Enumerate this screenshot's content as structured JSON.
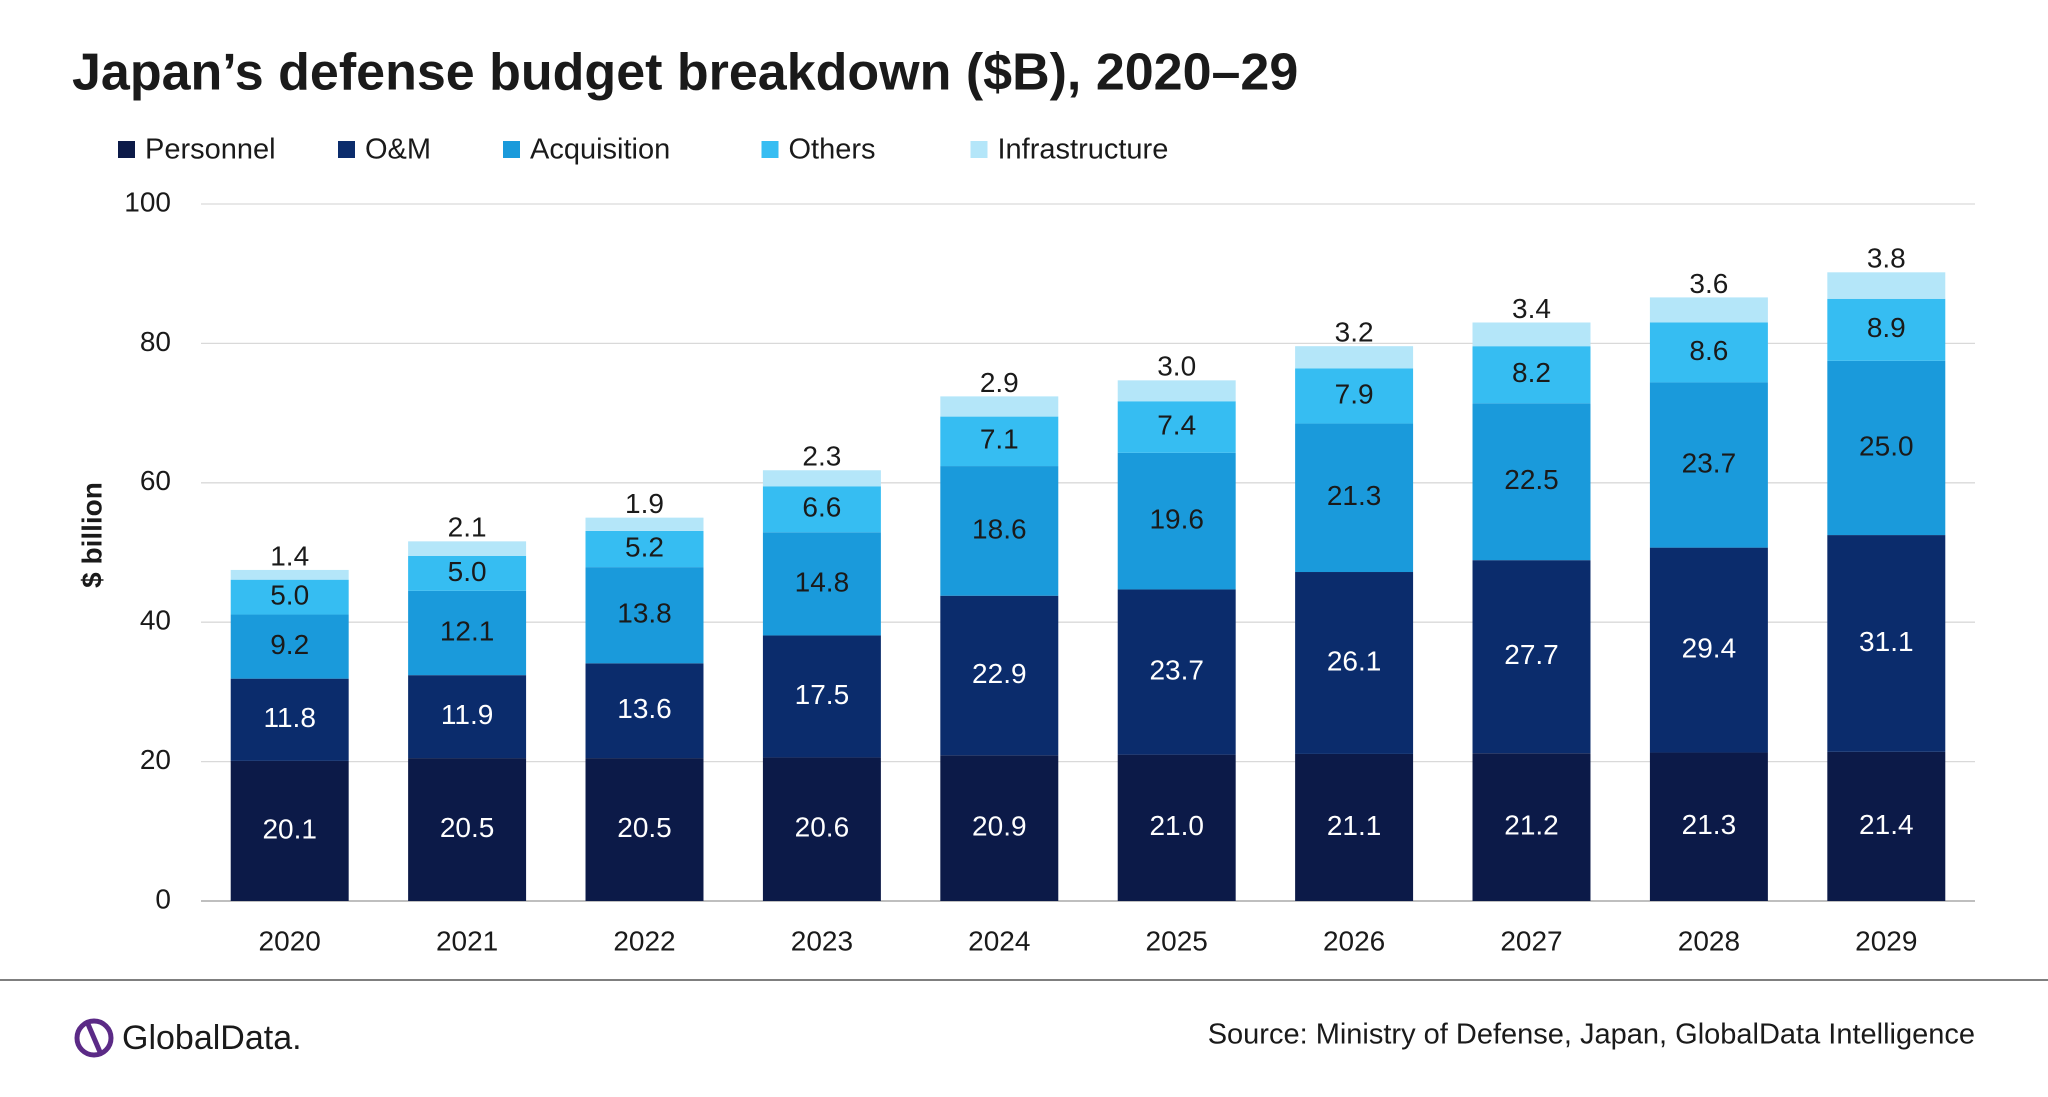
{
  "chart_data": {
    "type": "stacked-bar",
    "title": "Japan’s defense budget breakdown ($B), 2020–29",
    "y_label": "$ billion",
    "source": "Source: Ministry of Defense, Japan, GlobalData Intelligence",
    "logo": "GlobalData.",
    "categories": [
      "2020",
      "2021",
      "2022",
      "2023",
      "2024",
      "2025",
      "2026",
      "2027",
      "2028",
      "2029"
    ],
    "series": [
      {
        "name": "Personnel",
        "color": "#0c1a48",
        "label_color": "#ffffff",
        "values": [
          20.1,
          20.5,
          20.5,
          20.6,
          20.9,
          21.0,
          21.1,
          21.2,
          21.3,
          21.4
        ],
        "value_labels": [
          "20.1",
          "20.5",
          "20.5",
          "20.6",
          "20.9",
          "21.0",
          "21.1",
          "21.2",
          "21.3",
          "21.4"
        ]
      },
      {
        "name": "O&M",
        "color": "#0b2c6c",
        "label_color": "#ffffff",
        "values": [
          11.8,
          11.9,
          13.6,
          17.5,
          22.9,
          23.7,
          26.1,
          27.7,
          29.4,
          31.1
        ],
        "value_labels": [
          "11.8",
          "11.9",
          "13.6",
          "17.5",
          "22.9",
          "23.7",
          "26.1",
          "27.7",
          "29.4",
          "31.1"
        ]
      },
      {
        "name": "Acquisition",
        "color": "#1a9adb",
        "label_color": "#1a1a1a",
        "values": [
          9.2,
          12.1,
          13.8,
          14.8,
          18.6,
          19.6,
          21.3,
          22.5,
          23.7,
          25.0
        ],
        "value_labels": [
          "9.2",
          "12.1",
          "13.8",
          "14.8",
          "18.6",
          "19.6",
          "21.3",
          "22.5",
          "23.7",
          "25.0"
        ]
      },
      {
        "name": "Others",
        "color": "#36bdf2",
        "label_color": "#1a1a1a",
        "values": [
          5.0,
          5.0,
          5.2,
          6.6,
          7.1,
          7.4,
          7.9,
          8.2,
          8.6,
          8.9
        ],
        "value_labels": [
          "5.0",
          "5.0",
          "5.2",
          "6.6",
          "7.1",
          "7.4",
          "7.9",
          "8.2",
          "8.6",
          "8.9"
        ]
      },
      {
        "name": "Infrastructure",
        "color": "#b4e6f9",
        "label_color": "#1a1a1a",
        "values": [
          1.4,
          2.1,
          1.9,
          2.3,
          2.9,
          3.0,
          3.2,
          3.4,
          3.6,
          3.8
        ],
        "value_labels": [
          "1.4",
          "2.1",
          "1.9",
          "2.3",
          "2.9",
          "3.0",
          "3.2",
          "3.4",
          "3.6",
          "3.8"
        ]
      }
    ],
    "ylim": [
      0,
      100
    ],
    "yticks": [
      0,
      20,
      40,
      60,
      80,
      100
    ],
    "grid": true,
    "legend": "top-left"
  }
}
